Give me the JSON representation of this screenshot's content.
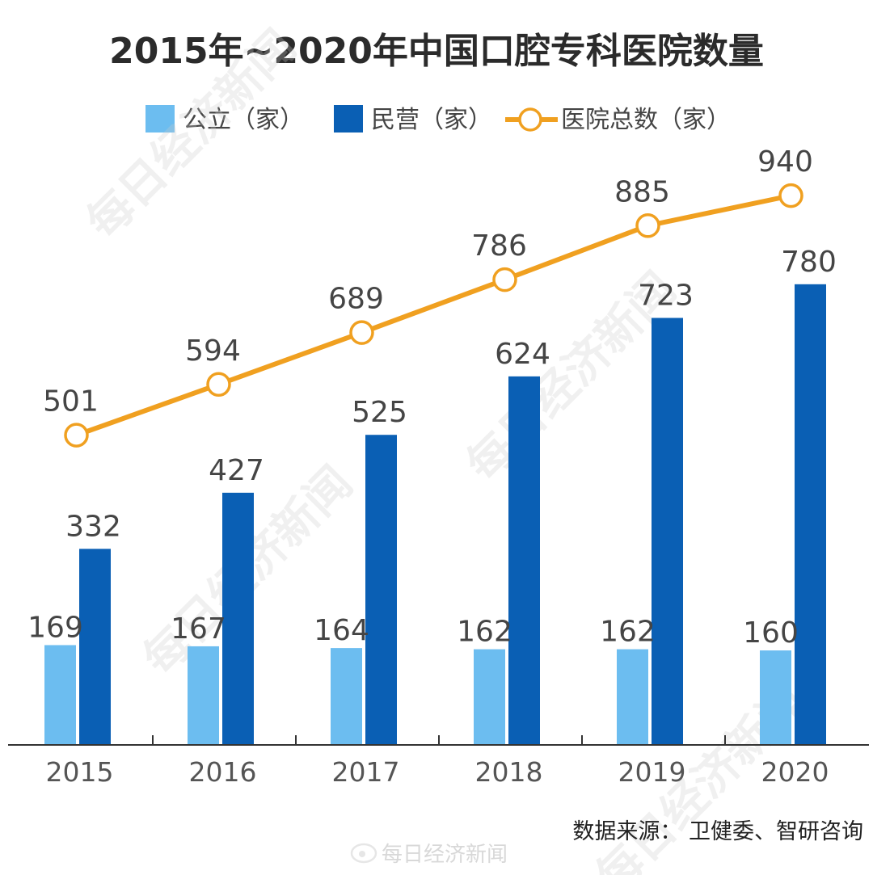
{
  "chart_data": {
    "type": "bar",
    "title": "2015年~2020年中国口腔专科医院数量",
    "categories": [
      "2015",
      "2016",
      "2017",
      "2018",
      "2019",
      "2020"
    ],
    "series": [
      {
        "name": "公立（家）",
        "type": "bar",
        "color": "#6cbdf0",
        "values": [
          169,
          167,
          164,
          162,
          162,
          160
        ]
      },
      {
        "name": "民营（家）",
        "type": "bar",
        "color": "#0a5fb4",
        "values": [
          332,
          427,
          525,
          624,
          723,
          780
        ]
      },
      {
        "name": "医院总数（家）",
        "type": "line",
        "color": "#f0a020",
        "values": [
          501,
          594,
          689,
          786,
          885,
          940
        ]
      }
    ],
    "legend_position": "top",
    "grid": false,
    "ylim": [
      0,
      1000
    ]
  },
  "source": "数据来源： 卫健委、智研咨询",
  "watermark": {
    "text": "每日经济新闻",
    "bottom_text": "每日经济新闻",
    "logo_icon": "weibo-icon"
  }
}
